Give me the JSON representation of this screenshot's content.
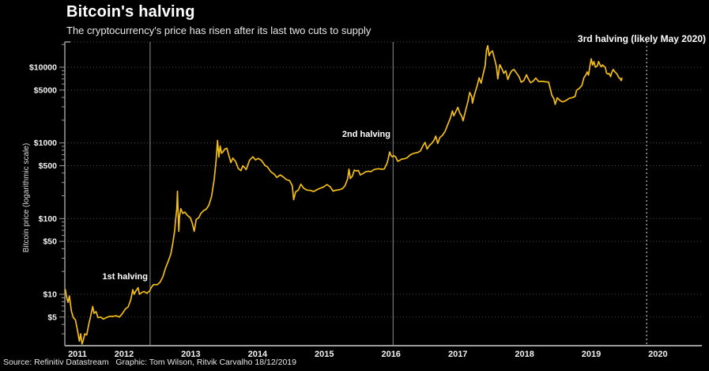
{
  "title": "Bitcoin's halving",
  "subtitle": "The cryptocurrency's price has risen after its last two cuts to supply",
  "y_axis_title": "Bitcoin price (logarithmic scale)",
  "source_line": "Source: Refinitiv Datastream   Graphic: Tom Wilson, Ritvik Carvalho 18/12/2019",
  "colors": {
    "background": "#000000",
    "line": "#F3BD17",
    "grid": "#4d4d4d",
    "axis": "#9a9a9a",
    "halving_line": "#8f8f8f",
    "dotted_line": "#e8e8e8",
    "text": "#f2f2f2"
  },
  "chart_data": {
    "type": "line",
    "title": "Bitcoin's halving",
    "xlabel": "",
    "ylabel": "Bitcoin price (logarithmic scale)",
    "y_scale": "log",
    "xlim": [
      2011.61,
      2021.16
    ],
    "ylim": [
      2.1,
      21500
    ],
    "grid": "dotted-horizontal",
    "legend": "none",
    "x_unit": "year",
    "x_label_years": [
      2011,
      2012,
      2013,
      2014,
      2015,
      2016,
      2017,
      2018,
      2019,
      2020
    ],
    "y_ticks": [
      {
        "label": "$10000",
        "value": 10000
      },
      {
        "label": "$5000",
        "value": 5000
      },
      {
        "label": "$1000",
        "value": 1000
      },
      {
        "label": "$500",
        "value": 500
      },
      {
        "label": "$100",
        "value": 100
      },
      {
        "label": "$50",
        "value": 50
      },
      {
        "label": "$10",
        "value": 10
      },
      {
        "label": "$5",
        "value": 5
      }
    ],
    "y_minor_ticks": [
      3,
      4,
      6,
      7,
      8,
      9,
      20,
      30,
      40,
      60,
      70,
      80,
      90,
      200,
      300,
      400,
      600,
      700,
      800,
      900,
      2000,
      3000,
      4000,
      6000,
      7000,
      8000,
      9000,
      20000
    ],
    "halvings": [
      {
        "label": "1st halving",
        "year": 2012.89,
        "line": "solid"
      },
      {
        "label": "2nd halving",
        "year": 2016.53,
        "line": "solid"
      },
      {
        "label": "3rd halving (likely May 2020)",
        "year": 2020.33,
        "line": "dotted"
      }
    ],
    "series": [
      {
        "name": "Bitcoin price (USD)",
        "points": [
          [
            2011.62,
            11.5
          ],
          [
            2011.64,
            9
          ],
          [
            2011.66,
            7.8
          ],
          [
            2011.68,
            9.5
          ],
          [
            2011.71,
            6
          ],
          [
            2011.74,
            4.9
          ],
          [
            2011.77,
            4.6
          ],
          [
            2011.8,
            3.4
          ],
          [
            2011.83,
            2.4
          ],
          [
            2011.85,
            3.0
          ],
          [
            2011.87,
            2.2
          ],
          [
            2011.89,
            2.5
          ],
          [
            2011.91,
            3.0
          ],
          [
            2011.94,
            2.9
          ],
          [
            2011.97,
            4.0
          ],
          [
            2012.0,
            5.2
          ],
          [
            2012.03,
            6.9
          ],
          [
            2012.05,
            5.6
          ],
          [
            2012.08,
            5.9
          ],
          [
            2012.11,
            4.9
          ],
          [
            2012.15,
            5.0
          ],
          [
            2012.19,
            4.7
          ],
          [
            2012.23,
            4.9
          ],
          [
            2012.28,
            5.1
          ],
          [
            2012.33,
            5.1
          ],
          [
            2012.38,
            5.2
          ],
          [
            2012.43,
            5.0
          ],
          [
            2012.47,
            5.5
          ],
          [
            2012.52,
            6.4
          ],
          [
            2012.56,
            6.8
          ],
          [
            2012.6,
            8.4
          ],
          [
            2012.63,
            11.5
          ],
          [
            2012.65,
            10.0
          ],
          [
            2012.68,
            11.2
          ],
          [
            2012.71,
            12.2
          ],
          [
            2012.73,
            10.0
          ],
          [
            2012.76,
            10.5
          ],
          [
            2012.8,
            10.9
          ],
          [
            2012.84,
            10.3
          ],
          [
            2012.88,
            11.0
          ],
          [
            2012.91,
            12.4
          ],
          [
            2012.94,
            13.4
          ],
          [
            2013.0,
            13.4
          ],
          [
            2013.04,
            14.5
          ],
          [
            2013.08,
            17
          ],
          [
            2013.12,
            22
          ],
          [
            2013.16,
            27
          ],
          [
            2013.2,
            34
          ],
          [
            2013.23,
            47
          ],
          [
            2013.26,
            72
          ],
          [
            2013.27,
            93
          ],
          [
            2013.29,
            135
          ],
          [
            2013.3,
            230
          ],
          [
            2013.31,
            120
          ],
          [
            2013.32,
            68
          ],
          [
            2013.33,
            105
          ],
          [
            2013.35,
            135
          ],
          [
            2013.38,
            117
          ],
          [
            2013.41,
            122
          ],
          [
            2013.45,
            110
          ],
          [
            2013.49,
            103
          ],
          [
            2013.52,
            88
          ],
          [
            2013.55,
            68
          ],
          [
            2013.58,
            97
          ],
          [
            2013.62,
            103
          ],
          [
            2013.65,
            117
          ],
          [
            2013.69,
            127
          ],
          [
            2013.73,
            133
          ],
          [
            2013.77,
            150
          ],
          [
            2013.81,
            195
          ],
          [
            2013.85,
            330
          ],
          [
            2013.88,
            600
          ],
          [
            2013.9,
            1080
          ],
          [
            2013.92,
            650
          ],
          [
            2013.94,
            910
          ],
          [
            2013.96,
            730
          ],
          [
            2013.98,
            760
          ],
          [
            2014.01,
            830
          ],
          [
            2014.04,
            850
          ],
          [
            2014.07,
            680
          ],
          [
            2014.1,
            550
          ],
          [
            2014.13,
            630
          ],
          [
            2014.17,
            570
          ],
          [
            2014.21,
            460
          ],
          [
            2014.25,
            430
          ],
          [
            2014.28,
            500
          ],
          [
            2014.33,
            445
          ],
          [
            2014.38,
            590
          ],
          [
            2014.43,
            655
          ],
          [
            2014.47,
            595
          ],
          [
            2014.51,
            625
          ],
          [
            2014.56,
            585
          ],
          [
            2014.61,
            505
          ],
          [
            2014.65,
            480
          ],
          [
            2014.7,
            415
          ],
          [
            2014.75,
            385
          ],
          [
            2014.79,
            350
          ],
          [
            2014.84,
            378
          ],
          [
            2014.89,
            352
          ],
          [
            2014.93,
            328
          ],
          [
            2014.98,
            318
          ],
          [
            2015.02,
            272
          ],
          [
            2015.04,
            178
          ],
          [
            2015.07,
            225
          ],
          [
            2015.11,
            238
          ],
          [
            2015.15,
            285
          ],
          [
            2015.19,
            252
          ],
          [
            2015.24,
            238
          ],
          [
            2015.29,
            236
          ],
          [
            2015.34,
            228
          ],
          [
            2015.39,
            241
          ],
          [
            2015.44,
            252
          ],
          [
            2015.49,
            262
          ],
          [
            2015.54,
            282
          ],
          [
            2015.59,
            262
          ],
          [
            2015.63,
            231
          ],
          [
            2015.67,
            237
          ],
          [
            2015.72,
            240
          ],
          [
            2015.77,
            248
          ],
          [
            2015.81,
            272
          ],
          [
            2015.85,
            334
          ],
          [
            2015.87,
            450
          ],
          [
            2015.89,
            338
          ],
          [
            2015.92,
            364
          ],
          [
            2015.95,
            438
          ],
          [
            2015.98,
            425
          ],
          [
            2016.01,
            433
          ],
          [
            2016.04,
            378
          ],
          [
            2016.08,
            394
          ],
          [
            2016.12,
            416
          ],
          [
            2016.16,
            422
          ],
          [
            2016.2,
            418
          ],
          [
            2016.24,
            442
          ],
          [
            2016.28,
            452
          ],
          [
            2016.32,
            456
          ],
          [
            2016.36,
            448
          ],
          [
            2016.4,
            455
          ],
          [
            2016.44,
            540
          ],
          [
            2016.46,
            625
          ],
          [
            2016.48,
            760
          ],
          [
            2016.5,
            680
          ],
          [
            2016.52,
            655
          ],
          [
            2016.54,
            678
          ],
          [
            2016.57,
            652
          ],
          [
            2016.6,
            572
          ],
          [
            2016.63,
            588
          ],
          [
            2016.66,
            612
          ],
          [
            2016.7,
            618
          ],
          [
            2016.74,
            636
          ],
          [
            2016.78,
            686
          ],
          [
            2016.82,
            716
          ],
          [
            2016.86,
            736
          ],
          [
            2016.9,
            748
          ],
          [
            2016.94,
            784
          ],
          [
            2016.98,
            920
          ],
          [
            2017.01,
            1015
          ],
          [
            2017.04,
            830
          ],
          [
            2017.07,
            915
          ],
          [
            2017.11,
            988
          ],
          [
            2017.14,
            1070
          ],
          [
            2017.17,
            1230
          ],
          [
            2017.2,
            985
          ],
          [
            2017.23,
            1175
          ],
          [
            2017.27,
            1260
          ],
          [
            2017.31,
            1420
          ],
          [
            2017.35,
            1750
          ],
          [
            2017.39,
            2150
          ],
          [
            2017.42,
            2650
          ],
          [
            2017.44,
            2280
          ],
          [
            2017.47,
            2580
          ],
          [
            2017.5,
            2950
          ],
          [
            2017.53,
            2480
          ],
          [
            2017.56,
            2250
          ],
          [
            2017.58,
            1960
          ],
          [
            2017.62,
            2750
          ],
          [
            2017.65,
            3450
          ],
          [
            2017.68,
            4650
          ],
          [
            2017.71,
            4050
          ],
          [
            2017.72,
            3350
          ],
          [
            2017.75,
            4350
          ],
          [
            2017.79,
            5650
          ],
          [
            2017.82,
            7250
          ],
          [
            2017.85,
            6150
          ],
          [
            2017.88,
            8050
          ],
          [
            2017.91,
            10500
          ],
          [
            2017.93,
            16800
          ],
          [
            2017.95,
            19300
          ],
          [
            2017.97,
            14200
          ],
          [
            2017.99,
            15600
          ],
          [
            2018.02,
            16400
          ],
          [
            2018.05,
            13000
          ],
          [
            2018.08,
            10200
          ],
          [
            2018.1,
            7000
          ],
          [
            2018.13,
            10800
          ],
          [
            2018.16,
            9600
          ],
          [
            2018.19,
            8300
          ],
          [
            2018.22,
            9000
          ],
          [
            2018.25,
            6900
          ],
          [
            2018.28,
            8100
          ],
          [
            2018.31,
            9000
          ],
          [
            2018.34,
            9350
          ],
          [
            2018.38,
            8400
          ],
          [
            2018.42,
            7450
          ],
          [
            2018.45,
            6350
          ],
          [
            2018.49,
            6650
          ],
          [
            2018.53,
            7950
          ],
          [
            2018.56,
            6950
          ],
          [
            2018.59,
            6250
          ],
          [
            2018.63,
            6550
          ],
          [
            2018.67,
            7200
          ],
          [
            2018.71,
            6480
          ],
          [
            2018.76,
            6520
          ],
          [
            2018.81,
            6420
          ],
          [
            2018.86,
            6380
          ],
          [
            2018.88,
            5450
          ],
          [
            2018.91,
            4250
          ],
          [
            2018.94,
            3850
          ],
          [
            2018.96,
            3230
          ],
          [
            2018.99,
            3950
          ],
          [
            2019.03,
            3650
          ],
          [
            2019.07,
            3480
          ],
          [
            2019.12,
            3620
          ],
          [
            2019.17,
            3880
          ],
          [
            2019.22,
            3980
          ],
          [
            2019.26,
            4120
          ],
          [
            2019.28,
            4950
          ],
          [
            2019.32,
            5250
          ],
          [
            2019.36,
            5750
          ],
          [
            2019.39,
            7250
          ],
          [
            2019.42,
            7950
          ],
          [
            2019.44,
            8650
          ],
          [
            2019.46,
            7850
          ],
          [
            2019.48,
            10300
          ],
          [
            2019.5,
            12900
          ],
          [
            2019.52,
            10700
          ],
          [
            2019.54,
            11850
          ],
          [
            2019.56,
            10050
          ],
          [
            2019.59,
            10350
          ],
          [
            2019.61,
            11900
          ],
          [
            2019.63,
            10850
          ],
          [
            2019.65,
            10150
          ],
          [
            2019.67,
            10750
          ],
          [
            2019.69,
            10250
          ],
          [
            2019.71,
            10050
          ],
          [
            2019.73,
            8350
          ],
          [
            2019.75,
            8150
          ],
          [
            2019.77,
            8250
          ],
          [
            2019.79,
            7500
          ],
          [
            2019.81,
            8650
          ],
          [
            2019.83,
            9350
          ],
          [
            2019.85,
            8750
          ],
          [
            2019.87,
            8450
          ],
          [
            2019.89,
            8050
          ],
          [
            2019.91,
            7350
          ],
          [
            2019.93,
            7150
          ],
          [
            2019.95,
            6650
          ],
          [
            2019.96,
            7150
          ]
        ]
      }
    ]
  }
}
